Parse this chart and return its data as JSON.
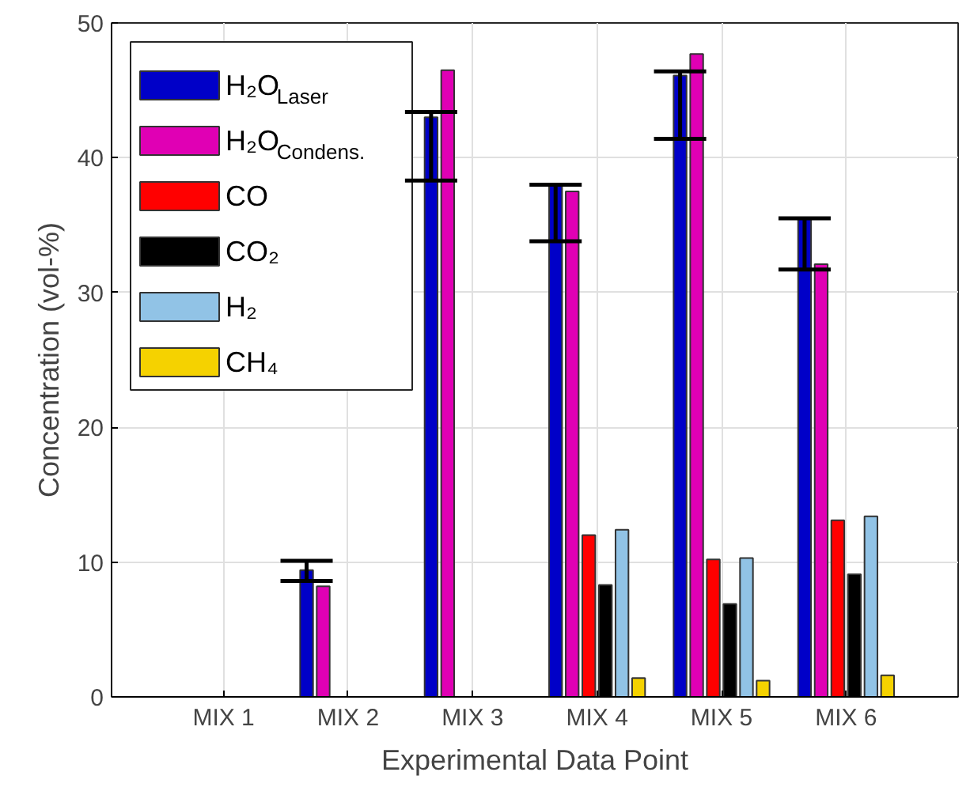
{
  "chart_data": {
    "type": "bar",
    "xlabel": "Experimental Data Point",
    "ylabel": "Concentration (vol-%)",
    "categories": [
      "MIX 1",
      "MIX 2",
      "MIX 3",
      "MIX 4",
      "MIX 5",
      "MIX 6"
    ],
    "series": [
      {
        "name": "H₂O$_{Laser}$",
        "color": "#0000c8",
        "values": [
          null,
          9.4,
          43.0,
          38.0,
          46.1,
          35.5
        ],
        "errors": [
          null,
          [
            8.6,
            10.1
          ],
          [
            38.3,
            43.4
          ],
          [
            33.8,
            38.0
          ],
          [
            41.4,
            46.4
          ],
          [
            31.7,
            35.5
          ]
        ]
      },
      {
        "name": "H₂O$_{Condens.}$",
        "color": "#e000b4",
        "values": [
          null,
          8.2,
          46.5,
          37.5,
          47.7,
          32.1
        ]
      },
      {
        "name": "CO",
        "color": "#ff0000",
        "values": [
          null,
          null,
          null,
          12.0,
          10.2,
          13.1
        ]
      },
      {
        "name": "CO₂",
        "color": "#000000",
        "values": [
          null,
          null,
          null,
          8.3,
          6.9,
          9.1
        ]
      },
      {
        "name": "H₂",
        "color": "#91c3e6",
        "values": [
          null,
          null,
          null,
          12.4,
          10.3,
          13.4
        ]
      },
      {
        "name": "CH₄",
        "color": "#f5d200",
        "values": [
          null,
          null,
          null,
          1.4,
          1.2,
          1.6
        ]
      }
    ],
    "ylim": [
      0,
      50
    ],
    "yticks": [
      0,
      10,
      20,
      30,
      40,
      50
    ],
    "grid": true,
    "legend": "top left"
  }
}
